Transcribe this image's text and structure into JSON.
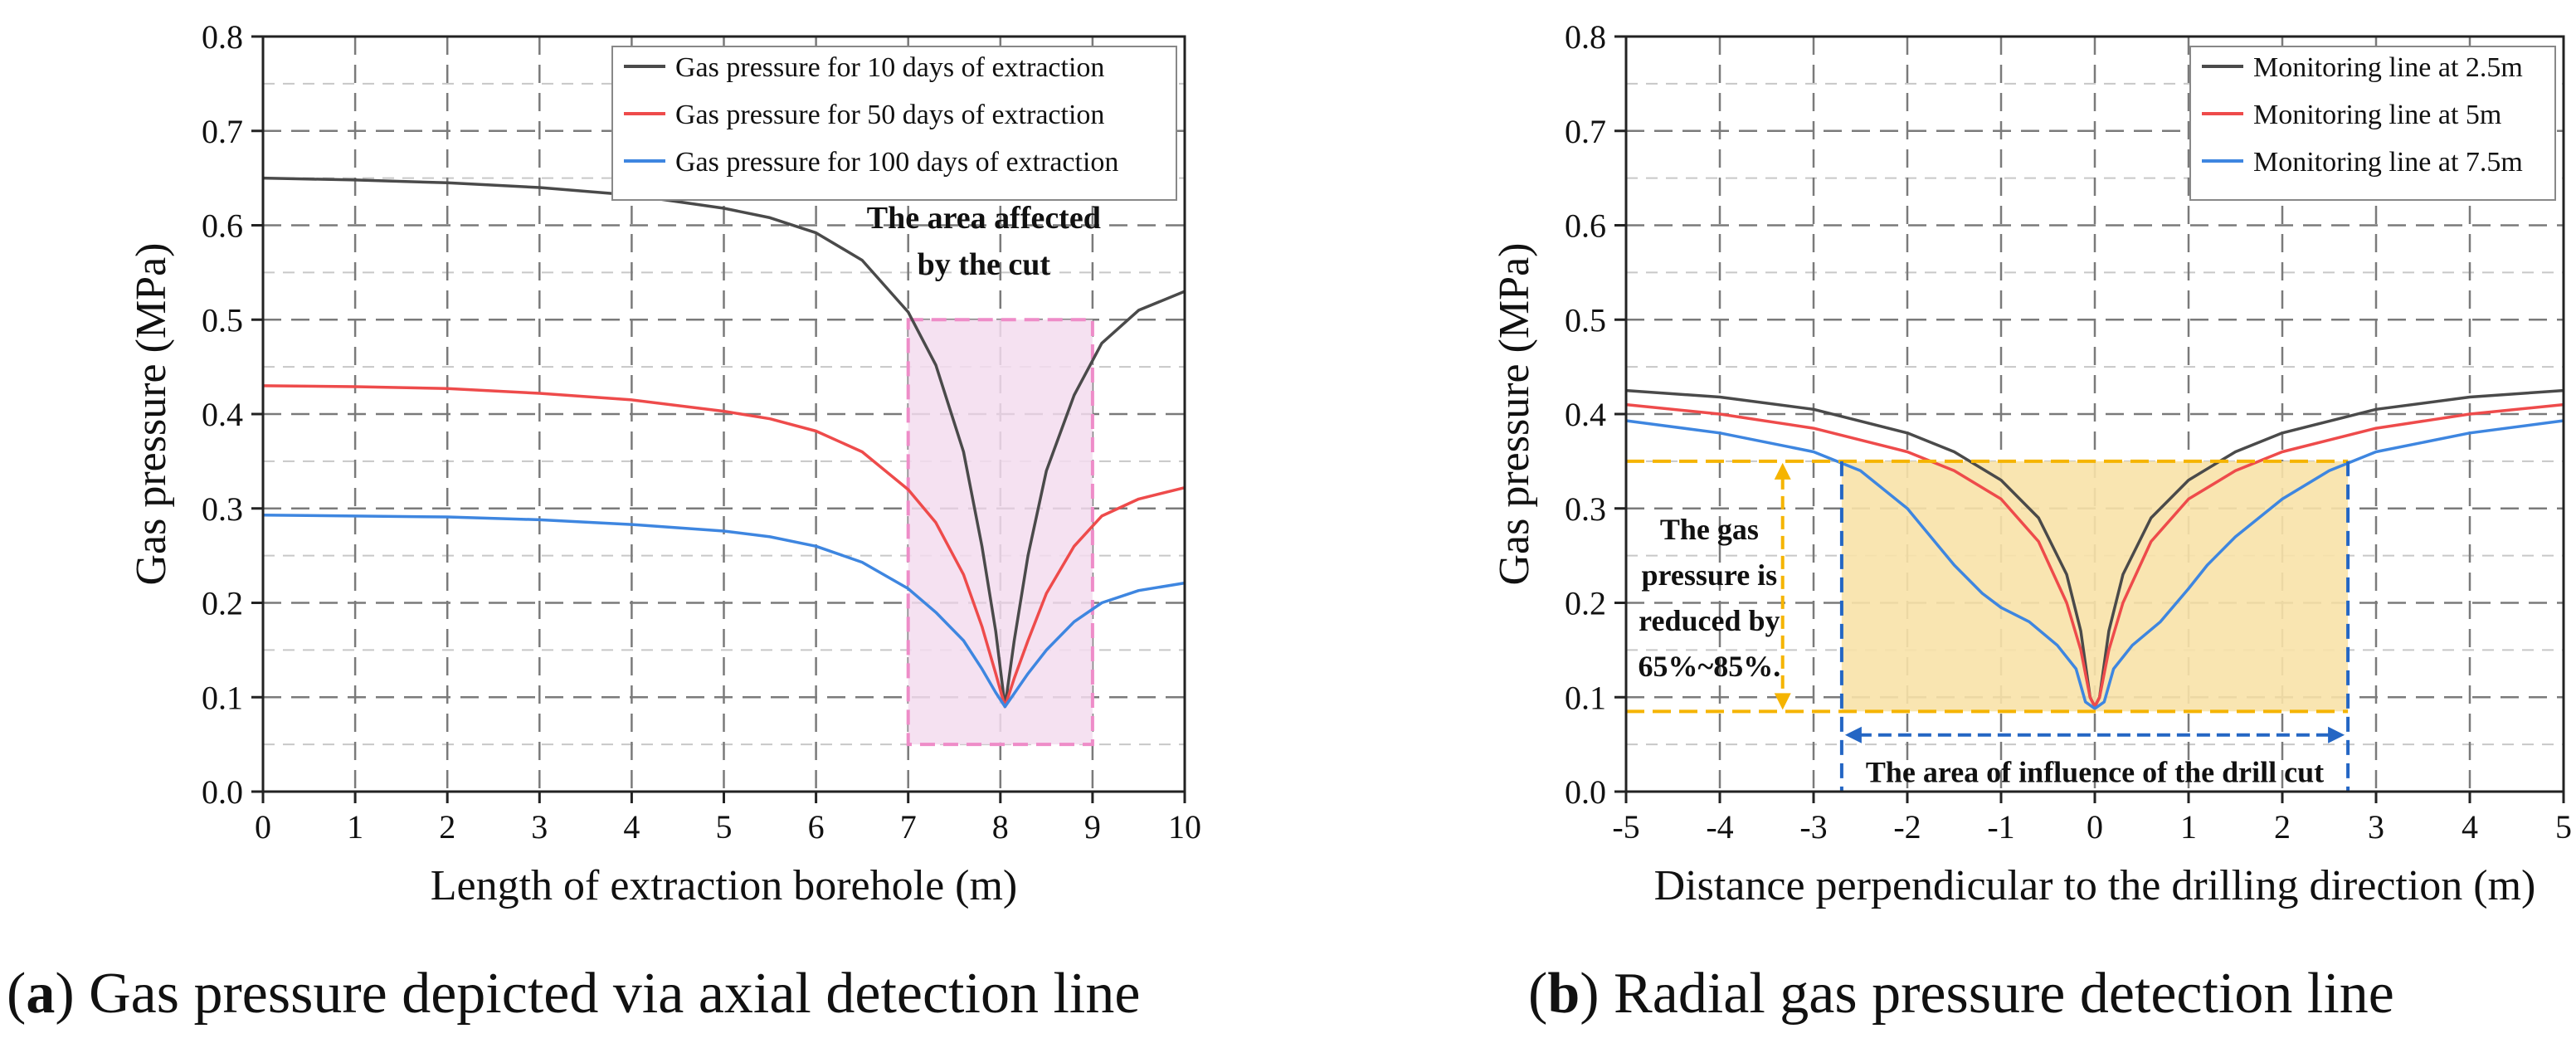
{
  "figure": {
    "caption_a": {
      "letter": "a",
      "text": ") Gas pressure depicted via axial detection line",
      "open": "("
    },
    "caption_b": {
      "letter": "b",
      "text": ") Radial gas pressure detection line",
      "open": "("
    }
  },
  "colors": {
    "black_series": "#4a4a4a",
    "red_series": "#ee4b4b",
    "blue_series": "#3e86e0",
    "cut_fill": "#f3dcef",
    "cut_border": "#ee8cc8",
    "influence_fill": "#f8e2a8",
    "yellow_dash": "#f5b400",
    "blue_dash": "#2466c4",
    "grid": "#7a7a7a"
  },
  "chart_data": [
    {
      "type": "line",
      "title": "",
      "xlabel": "Length of extraction borehole (m)",
      "ylabel": "Gas pressure (MPa)",
      "xlim": [
        0,
        10
      ],
      "ylim": [
        0,
        0.8
      ],
      "xticks": [
        0,
        1,
        2,
        3,
        4,
        5,
        6,
        7,
        8,
        9,
        10
      ],
      "yticks": [
        0.0,
        0.1,
        0.2,
        0.3,
        0.4,
        0.5,
        0.6,
        0.7,
        0.8
      ],
      "xtick_labels": [
        "0",
        "1",
        "2",
        "3",
        "4",
        "5",
        "6",
        "7",
        "8",
        "9",
        "10"
      ],
      "ytick_labels": [
        "0.0",
        "0.1",
        "0.2",
        "0.3",
        "0.4",
        "0.5",
        "0.6",
        "0.7",
        "0.8"
      ],
      "legend_position": "top-right",
      "series": [
        {
          "name": "Gas pressure for 10 days of extraction",
          "color": "#4a4a4a",
          "x": [
            0,
            1,
            2,
            3,
            4,
            5,
            5.5,
            6,
            6.5,
            7,
            7.3,
            7.6,
            7.8,
            7.95,
            8.05,
            8.15,
            8.3,
            8.5,
            8.8,
            9.1,
            9.5,
            10
          ],
          "y": [
            0.65,
            0.648,
            0.645,
            0.64,
            0.632,
            0.618,
            0.608,
            0.592,
            0.563,
            0.508,
            0.452,
            0.36,
            0.26,
            0.17,
            0.09,
            0.16,
            0.25,
            0.34,
            0.42,
            0.475,
            0.51,
            0.53
          ]
        },
        {
          "name": "Gas pressure for 50 days of extraction",
          "color": "#ee4b4b",
          "x": [
            0,
            1,
            2,
            3,
            4,
            5,
            5.5,
            6,
            6.5,
            7,
            7.3,
            7.6,
            7.8,
            7.95,
            8.05,
            8.15,
            8.3,
            8.5,
            8.8,
            9.1,
            9.5,
            10
          ],
          "y": [
            0.43,
            0.429,
            0.427,
            0.422,
            0.415,
            0.403,
            0.395,
            0.382,
            0.36,
            0.32,
            0.285,
            0.23,
            0.175,
            0.125,
            0.09,
            0.12,
            0.16,
            0.21,
            0.26,
            0.292,
            0.31,
            0.322
          ]
        },
        {
          "name": "Gas pressure for 100 days of extraction",
          "color": "#3e86e0",
          "x": [
            0,
            1,
            2,
            3,
            4,
            5,
            5.5,
            6,
            6.5,
            7,
            7.3,
            7.6,
            7.8,
            7.95,
            8.05,
            8.15,
            8.3,
            8.5,
            8.8,
            9.1,
            9.5,
            10
          ],
          "y": [
            0.293,
            0.292,
            0.291,
            0.288,
            0.283,
            0.276,
            0.27,
            0.26,
            0.243,
            0.215,
            0.19,
            0.16,
            0.13,
            0.105,
            0.09,
            0.104,
            0.125,
            0.15,
            0.18,
            0.2,
            0.213,
            0.221
          ]
        }
      ],
      "annotations": [
        {
          "text_lines": [
            "The area affected",
            "by the cut"
          ],
          "region_x": [
            7,
            9
          ],
          "region_y": [
            0.05,
            0.5
          ]
        }
      ]
    },
    {
      "type": "line",
      "title": "",
      "xlabel": "Distance perpendicular to the drilling direction (m)",
      "ylabel": "Gas pressure (MPa)",
      "xlim": [
        -5,
        5
      ],
      "ylim": [
        0,
        0.8
      ],
      "xticks": [
        -5,
        -4,
        -3,
        -2,
        -1,
        0,
        1,
        2,
        3,
        4,
        5
      ],
      "yticks": [
        0.0,
        0.1,
        0.2,
        0.3,
        0.4,
        0.5,
        0.6,
        0.7,
        0.8
      ],
      "xtick_labels": [
        "-5",
        "-4",
        "-3",
        "-2",
        "-1",
        "0",
        "1",
        "2",
        "3",
        "4",
        "5"
      ],
      "ytick_labels": [
        "0.0",
        "0.1",
        "0.2",
        "0.3",
        "0.4",
        "0.5",
        "0.6",
        "0.7",
        "0.8"
      ],
      "legend_position": "top-right",
      "series": [
        {
          "name": "Monitoring line at 2.5m",
          "color": "#4a4a4a",
          "x": [
            -5,
            -4,
            -3,
            -2,
            -1.5,
            -1,
            -0.6,
            -0.3,
            -0.15,
            -0.05,
            0,
            0.05,
            0.15,
            0.3,
            0.6,
            1,
            1.5,
            2,
            3,
            4,
            5
          ],
          "y": [
            0.425,
            0.418,
            0.405,
            0.38,
            0.36,
            0.33,
            0.29,
            0.23,
            0.17,
            0.1,
            0.09,
            0.1,
            0.17,
            0.23,
            0.29,
            0.33,
            0.36,
            0.38,
            0.405,
            0.418,
            0.425
          ]
        },
        {
          "name": "Monitoring line at 5m",
          "color": "#ee4b4b",
          "x": [
            -5,
            -4,
            -3,
            -2,
            -1.5,
            -1,
            -0.6,
            -0.3,
            -0.15,
            -0.05,
            0,
            0.05,
            0.15,
            0.3,
            0.6,
            1,
            1.5,
            2,
            3,
            4,
            5
          ],
          "y": [
            0.41,
            0.4,
            0.385,
            0.36,
            0.34,
            0.31,
            0.265,
            0.2,
            0.15,
            0.1,
            0.09,
            0.1,
            0.15,
            0.2,
            0.265,
            0.31,
            0.34,
            0.36,
            0.385,
            0.4,
            0.41
          ],
          "dashed": false
        },
        {
          "name": "Monitoring line at 7.5m",
          "color": "#3e86e0",
          "x": [
            -5,
            -4,
            -3,
            -2.5,
            -2,
            -1.5,
            -1.2,
            -1,
            -0.7,
            -0.4,
            -0.2,
            -0.1,
            0,
            0.1,
            0.2,
            0.4,
            0.7,
            1,
            1.2,
            1.5,
            2,
            2.5,
            3,
            4,
            5
          ],
          "y": [
            0.393,
            0.38,
            0.36,
            0.34,
            0.3,
            0.24,
            0.21,
            0.195,
            0.18,
            0.155,
            0.13,
            0.095,
            0.088,
            0.095,
            0.13,
            0.155,
            0.18,
            0.215,
            0.24,
            0.27,
            0.31,
            0.34,
            0.36,
            0.38,
            0.393
          ]
        }
      ],
      "annotations": [
        {
          "text_lines": [
            "The gas",
            "pressure is",
            "reduced by",
            "65%~85%."
          ],
          "span_y": [
            0.085,
            0.35
          ]
        },
        {
          "text": "The area of influence of the drill cut",
          "span_x": [
            -2.7,
            2.7
          ],
          "region_y": [
            0.085,
            0.35
          ]
        }
      ]
    }
  ]
}
